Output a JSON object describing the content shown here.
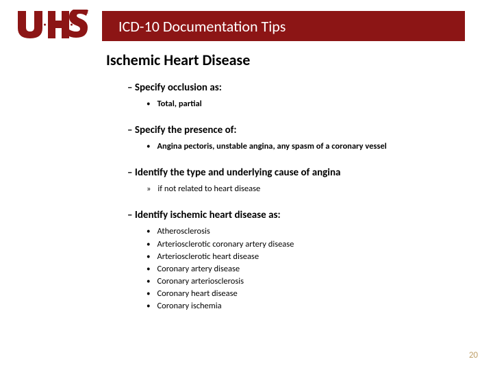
{
  "logo": {
    "letters": "U·H·S",
    "brand_color": "#8c1515"
  },
  "header": {
    "title": "ICD-10 Documentation Tips",
    "bg_color": "#8c1515"
  },
  "section_title": "Ischemic Heart Disease",
  "items": [
    {
      "heading": "Specify occlusion as:",
      "sub_style": "bullet_bold",
      "subs": [
        "Total, partial"
      ]
    },
    {
      "heading": "Specify the presence of:",
      "sub_style": "bullet_bold",
      "subs": [
        "Angina pectoris, unstable angina, any spasm of a coronary vessel"
      ]
    },
    {
      "heading": "Identify the type and underlying cause of angina",
      "sub_style": "raquo",
      "subs": [
        "if not related to heart disease"
      ]
    },
    {
      "heading": "Identify ischemic heart disease as:",
      "sub_style": "bullet_plain",
      "subs": [
        "Atherosclerosis",
        "Arteriosclerotic coronary artery disease",
        "Arteriosclerotic heart disease",
        "Coronary artery disease",
        "Coronary arteriosclerosis",
        "Coronary heart disease",
        "Coronary ischemia"
      ]
    }
  ],
  "page_number": "20",
  "page_number_color": "#bfa06a"
}
